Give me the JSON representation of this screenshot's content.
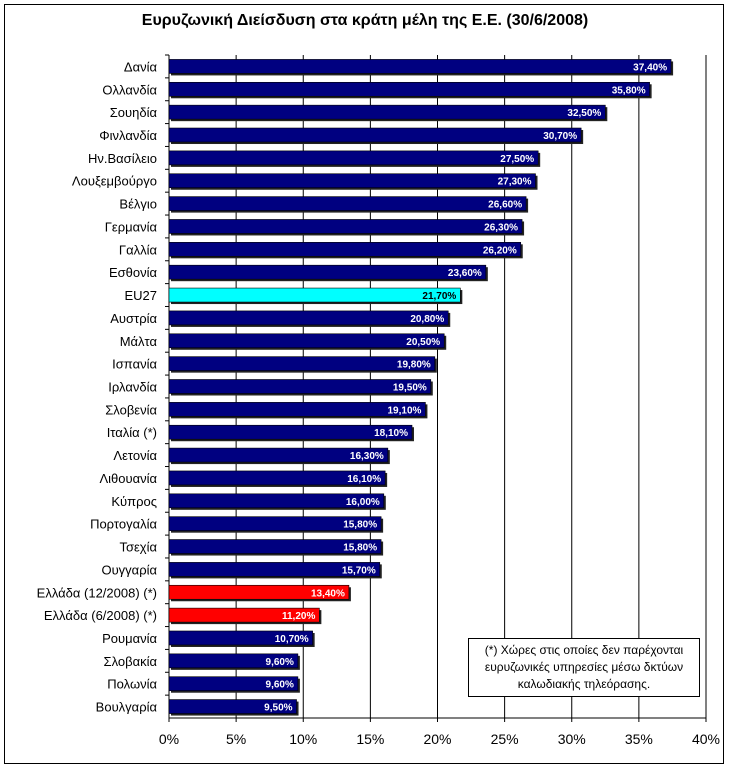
{
  "chart_data": {
    "type": "bar",
    "orientation": "horizontal",
    "title": "Ευρυζωνική Διείσδυση στα κράτη μέλη της Ε.Ε. (30/6/2008)",
    "xlabel": "",
    "ylabel": "",
    "xlim": [
      0,
      40
    ],
    "x_ticks": [
      "0%",
      "5%",
      "10%",
      "15%",
      "20%",
      "25%",
      "30%",
      "35%",
      "40%"
    ],
    "grid": true,
    "categories": [
      "Δανία",
      "Ολλανδία",
      "Σουηδία",
      "Φινλανδία",
      "Ην.Βασίλειο",
      "Λουξεμβούργο",
      "Βέλγιο",
      "Γερμανία",
      "Γαλλία",
      "Εσθονία",
      "EU27",
      "Αυστρία",
      "Μάλτα",
      "Ισπανία",
      "Ιρλανδία",
      "Σλοβενία",
      "Ιταλία (*)",
      "Λετονία",
      "Λιθουανία",
      "Κύπρος",
      "Πορτογαλία",
      "Τσεχία",
      "Ουγγαρία",
      "Ελλάδα (12/2008) (*)",
      "Ελλάδα (6/2008) (*)",
      "Ρουμανία",
      "Σλοβακία",
      "Πολωνία",
      "Βουλγαρία"
    ],
    "values": [
      37.4,
      35.8,
      32.5,
      30.7,
      27.5,
      27.3,
      26.6,
      26.3,
      26.2,
      23.6,
      21.7,
      20.8,
      20.5,
      19.8,
      19.5,
      19.1,
      18.1,
      16.3,
      16.1,
      16.0,
      15.8,
      15.8,
      15.7,
      13.4,
      11.2,
      10.7,
      9.6,
      9.6,
      9.5
    ],
    "value_labels": [
      "37,40%",
      "35,80%",
      "32,50%",
      "30,70%",
      "27,50%",
      "27,30%",
      "26,60%",
      "26,30%",
      "26,20%",
      "23,60%",
      "21,70%",
      "20,80%",
      "20,50%",
      "19,80%",
      "19,50%",
      "19,10%",
      "18,10%",
      "16,30%",
      "16,10%",
      "16,00%",
      "15,80%",
      "15,80%",
      "15,70%",
      "13,40%",
      "11,20%",
      "10,70%",
      "9,60%",
      "9,60%",
      "9,50%"
    ],
    "colors": {
      "default": "#000080",
      "EU27": "#00ffff",
      "Ελλάδα (12/2008) (*)": "#ff0000",
      "Ελλάδα (6/2008) (*)": "#ff0000"
    },
    "annotations": [
      "(*) Χώρες στις οποίες δεν παρέχονται ευρυζωνικές υπηρεσίες μέσω δκτύων καλωδιακής τηλεόρασης."
    ]
  }
}
